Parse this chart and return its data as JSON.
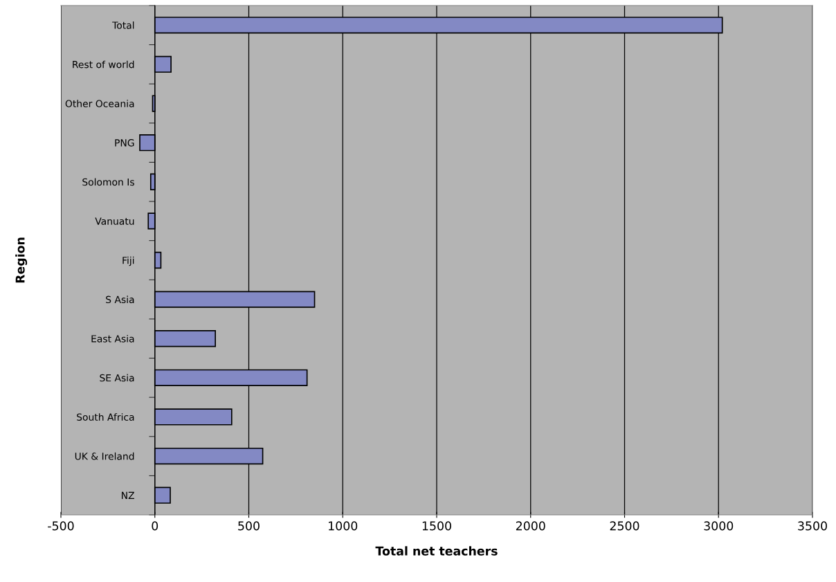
{
  "chart_data": {
    "type": "bar",
    "orientation": "horizontal",
    "xlabel": "Total net teachers",
    "ylabel": "Region",
    "categories": [
      "Total",
      "Rest of world",
      "Other Oceania",
      "PNG",
      "Solomon Is",
      "Vanuatu",
      "Fiji",
      "S Asia",
      "East Asia",
      "SE Asia",
      "South Africa",
      "UK & Ireland",
      "NZ"
    ],
    "values": [
      3020,
      86,
      -12,
      -80,
      -22,
      -35,
      32,
      850,
      322,
      810,
      409,
      574,
      82
    ],
    "color": "#8389c4",
    "xlim": [
      -500,
      3500
    ],
    "xticks": [
      -500,
      0,
      500,
      1000,
      1500,
      2000,
      2500,
      3000,
      3500
    ],
    "grid": "x",
    "legend": false
  }
}
